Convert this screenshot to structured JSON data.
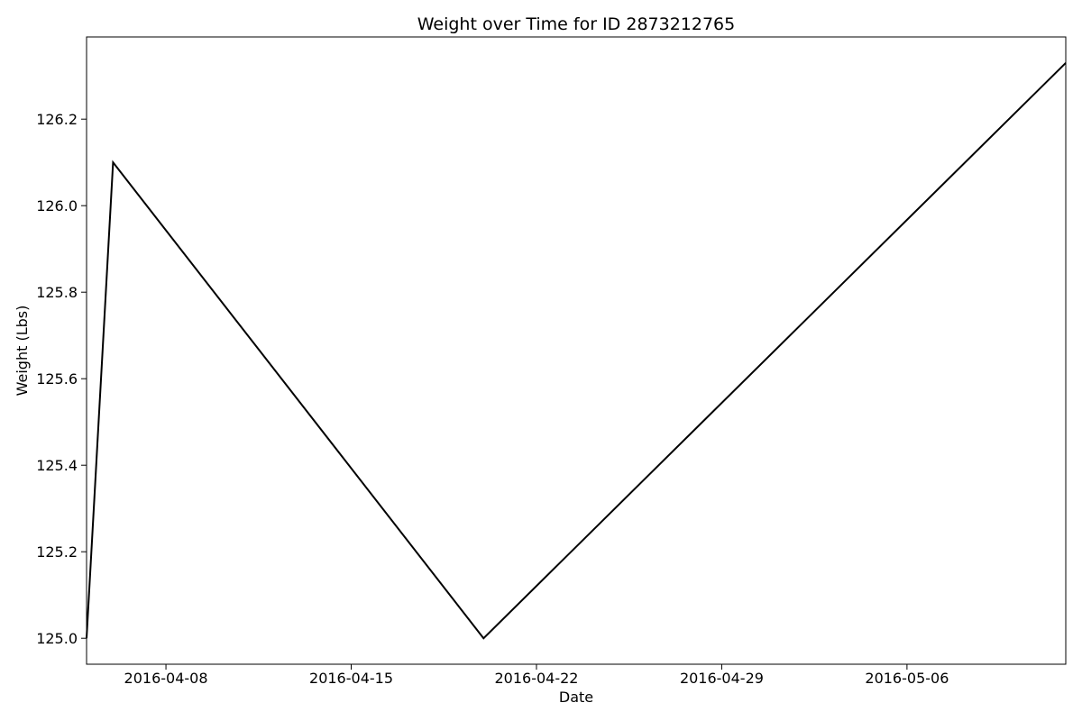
{
  "chart_data": {
    "type": "line",
    "title": "Weight over Time for ID 2873212765",
    "xlabel": "Date",
    "ylabel": "Weight (Lbs)",
    "x": [
      "2016-04-05",
      "2016-04-06",
      "2016-04-20",
      "2016-05-12"
    ],
    "series": [
      {
        "values": [
          125.0,
          126.1,
          125.0,
          126.33
        ],
        "color": "#000000"
      }
    ],
    "xlim": [
      "2016-04-05",
      "2016-05-12"
    ],
    "ylim": [
      124.94,
      126.39
    ],
    "xticks": [
      "2016-04-08",
      "2016-04-15",
      "2016-04-22",
      "2016-04-29",
      "2016-05-06"
    ],
    "yticks": [
      "125.0",
      "125.2",
      "125.4",
      "125.6",
      "125.8",
      "126.0",
      "126.2"
    ],
    "grid": false,
    "legend": "none"
  }
}
